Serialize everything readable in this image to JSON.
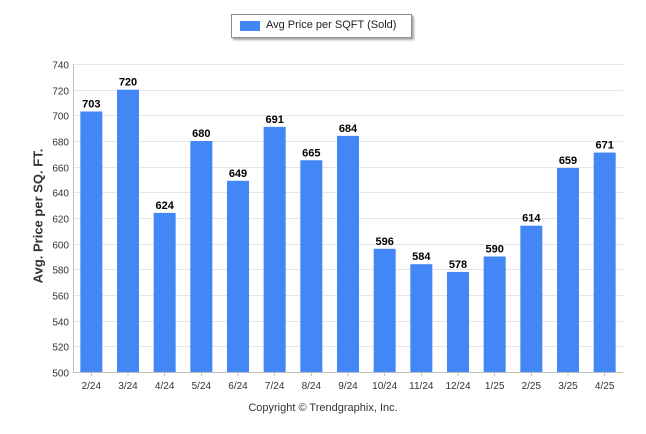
{
  "chart_data": {
    "type": "bar",
    "categories": [
      "2/24",
      "3/24",
      "4/24",
      "5/24",
      "6/24",
      "7/24",
      "8/24",
      "9/24",
      "10/24",
      "11/24",
      "12/24",
      "1/25",
      "2/25",
      "3/25",
      "4/25"
    ],
    "series": [
      {
        "name": "Avg Price per SQFT (Sold)",
        "values": [
          703,
          720,
          624,
          680,
          649,
          691,
          665,
          684,
          596,
          584,
          578,
          590,
          614,
          659,
          671
        ]
      }
    ],
    "ylabel": "Avg. Price per SQ. FT.",
    "xlabel": "",
    "ylim": [
      500,
      740
    ],
    "yticks": [
      500,
      520,
      540,
      560,
      580,
      600,
      620,
      640,
      660,
      680,
      700,
      720,
      740
    ],
    "grid": true,
    "legend_position": "top-center",
    "bar_color": "#4287f5"
  },
  "footer": {
    "copyright": "Copyright © Trendgraphix, Inc."
  }
}
